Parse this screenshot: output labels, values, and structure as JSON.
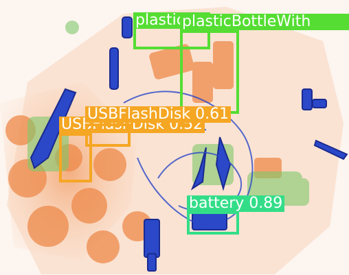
{
  "image": {
    "description_free": true
  },
  "detections": [
    {
      "id": "d1",
      "label": "plastic",
      "score": "",
      "color": "#55dd33"
    },
    {
      "id": "d2",
      "label": "plasticBottleWith",
      "score": "",
      "color": "#55dd33"
    },
    {
      "id": "d3",
      "label": "USBFlashDisk",
      "score": "0.61",
      "color": "#f5a623"
    },
    {
      "id": "d4",
      "label": "USBFlashDisk",
      "score": "0.52",
      "color": "#f5a623"
    },
    {
      "id": "d5",
      "label": "battery",
      "score": "0.89",
      "color": "#33dd88"
    }
  ],
  "colors": {
    "green_box": "#55dd33",
    "orange_box": "#f5a623",
    "battery_box": "#33dd88",
    "xray_orange": "#ee8844",
    "xray_blue": "#2244cc",
    "xray_green": "#88cc66"
  }
}
